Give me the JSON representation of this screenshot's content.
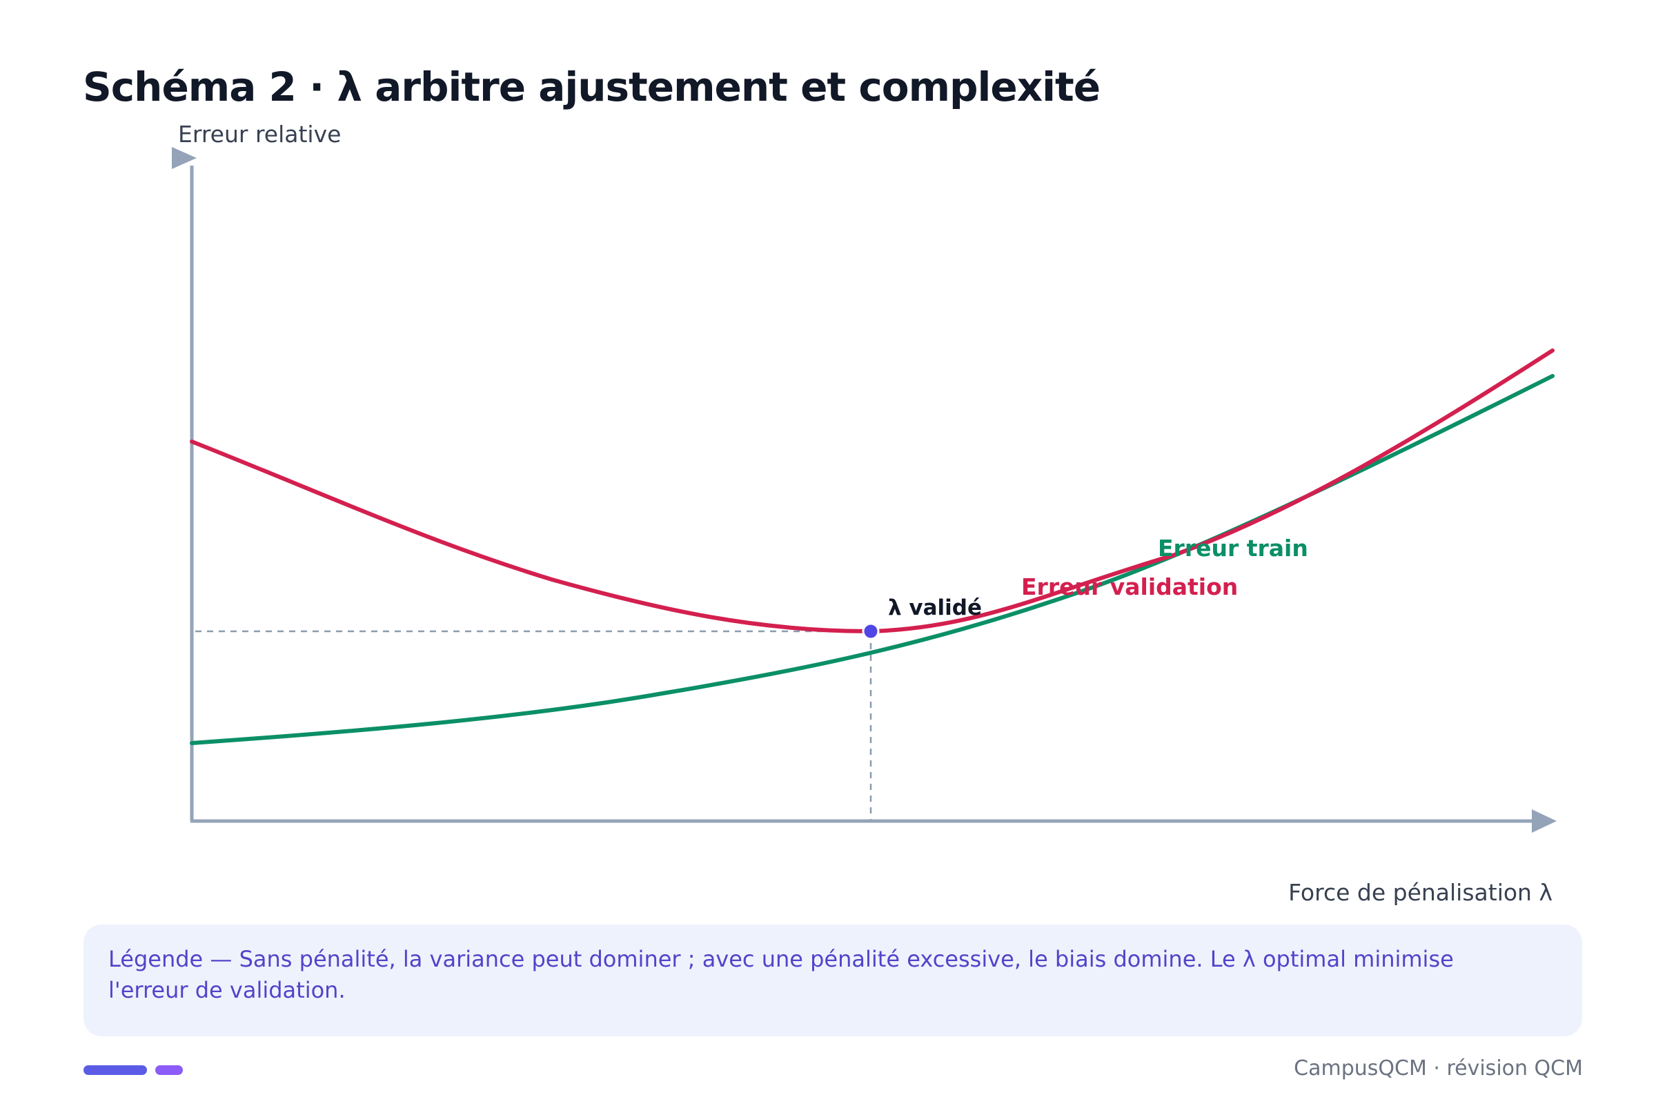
{
  "title": "Schéma 2 · λ arbitre ajustement et complexité",
  "axes": {
    "y_label": "Erreur relative",
    "x_label": "Force de pénalisation λ"
  },
  "curves": {
    "validation": {
      "label": "Erreur validation",
      "color": "#d3204f"
    },
    "train": {
      "label": "Erreur train",
      "color": "#0b8f66"
    }
  },
  "optimum": {
    "label": "λ validé",
    "color": "#4f46e5"
  },
  "axis_color": "#94a3b8",
  "caption": "Légende — Sans pénalité, la variance peut dominer ; avec une pénalité excessive, le biais domine. Le λ optimal minimise l'erreur de validation.",
  "footer": "CampusQCM · révision QCM"
}
